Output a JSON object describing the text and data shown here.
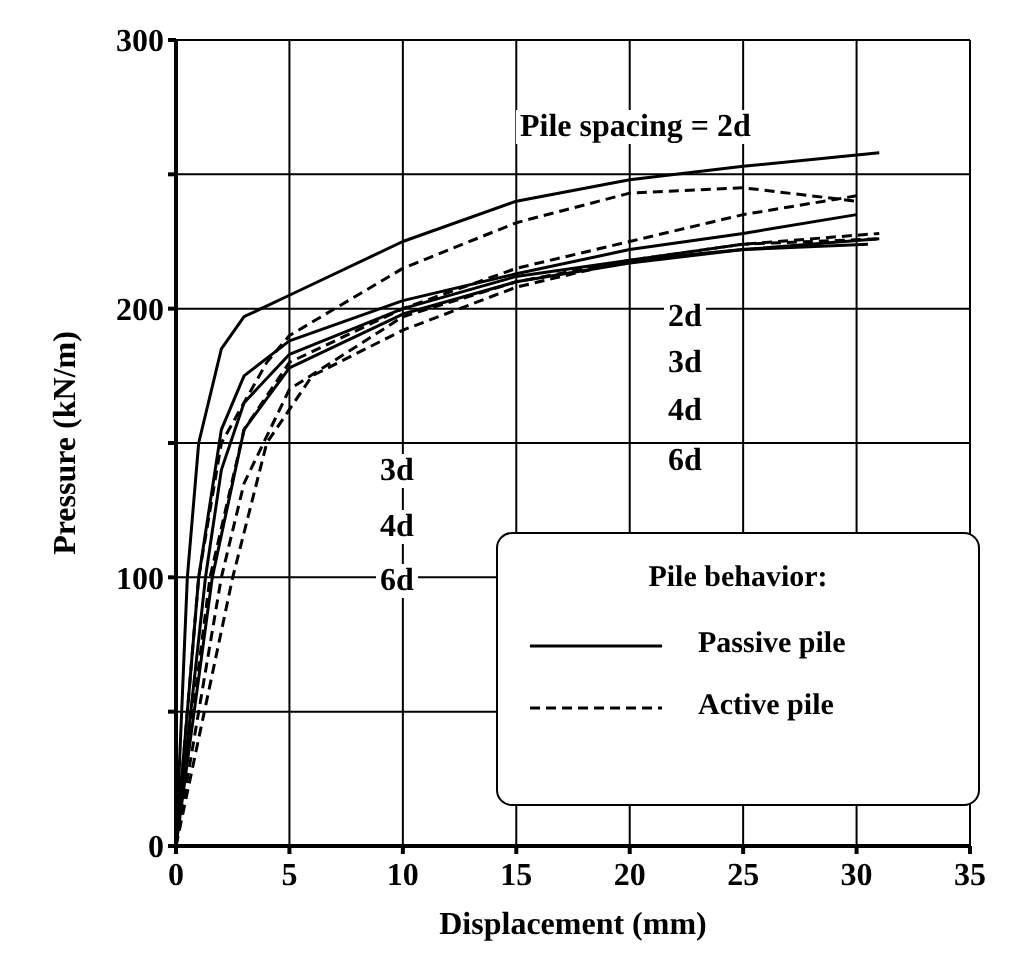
{
  "chart_data": {
    "type": "line",
    "xlabel": "Displacement (mm)",
    "ylabel": "Pressure (kN/m)",
    "legend_title": "Pile behavior:",
    "xlim": [
      0,
      35
    ],
    "xticks": [
      0,
      5,
      10,
      15,
      20,
      25,
      30,
      35
    ],
    "ylim": [
      0,
      300
    ],
    "yticks": [
      0,
      {
        "value": 50,
        "label": null
      },
      100,
      {
        "value": 150,
        "label": null
      },
      200,
      {
        "value": 250,
        "label": null
      },
      300
    ],
    "grid": true,
    "legend": "bottom right",
    "marker": "none",
    "series": [
      {
        "name": "Passive pile",
        "color": "#000000",
        "line_style": "solid",
        "x": [
          0,
          0.5,
          1,
          2,
          3,
          5,
          10,
          15,
          20,
          25,
          31
        ],
        "values": [
          0,
          100,
          150,
          185,
          197,
          205,
          225,
          240,
          248,
          253,
          258
        ]
      },
      {
        "color": "#000000",
        "line_style": "solid",
        "x": [
          0,
          1,
          2,
          3,
          5,
          10,
          15,
          20,
          25,
          30
        ],
        "values": [
          0,
          100,
          155,
          175,
          188,
          203,
          213,
          222,
          228,
          235
        ]
      },
      {
        "color": "#000000",
        "line_style": "solid",
        "x": [
          0,
          1.3,
          2,
          3,
          5,
          10,
          15,
          20,
          25,
          31
        ],
        "values": [
          0,
          100,
          140,
          165,
          183,
          200,
          212,
          218,
          222,
          226
        ]
      },
      {
        "color": "#000000",
        "line_style": "solid",
        "x": [
          0,
          1.6,
          3,
          5,
          10,
          15,
          20,
          25,
          30.5
        ],
        "values": [
          0,
          100,
          155,
          178,
          198,
          210,
          217,
          222,
          224
        ]
      },
      {
        "name": "Active pile",
        "color": "#000000",
        "line_style": "dashed",
        "x": [
          0,
          1,
          2,
          4,
          5,
          10,
          15,
          20,
          25,
          30
        ],
        "values": [
          0,
          100,
          150,
          180,
          190,
          215,
          232,
          243,
          245,
          240
        ]
      },
      {
        "color": "#000000",
        "line_style": "dashed",
        "x": [
          0,
          1.5,
          3,
          5,
          10,
          15,
          20,
          25,
          30
        ],
        "values": [
          0,
          100,
          155,
          180,
          200,
          215,
          225,
          235,
          242
        ]
      },
      {
        "color": "#000000",
        "line_style": "dashed",
        "x": [
          0,
          2,
          3,
          5,
          10,
          15,
          20,
          25,
          31
        ],
        "values": [
          0,
          100,
          135,
          170,
          197,
          210,
          218,
          224,
          228
        ]
      },
      {
        "color": "#000000",
        "line_style": "dashed",
        "x": [
          0,
          2.5,
          4,
          6,
          10,
          15,
          20,
          25,
          31
        ],
        "values": [
          0,
          100,
          150,
          175,
          192,
          208,
          218,
          224,
          226
        ]
      }
    ],
    "annotations": [
      "Pile spacing = 2d",
      "2d",
      "3d",
      "4d",
      "6d",
      "3d",
      "4d",
      "6d"
    ]
  }
}
